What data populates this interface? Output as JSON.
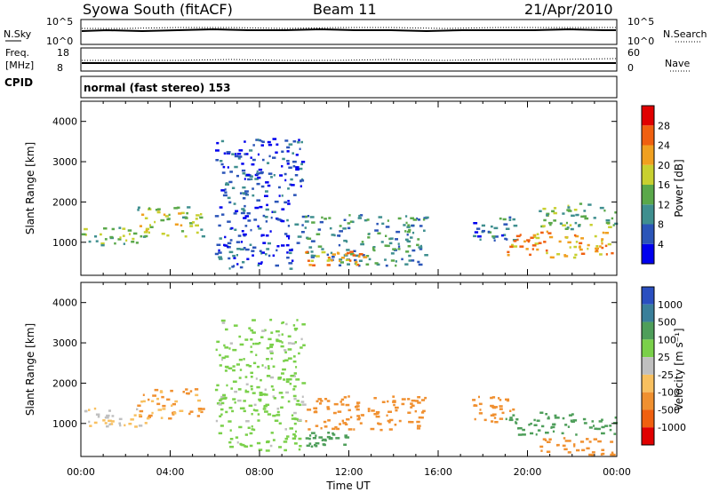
{
  "header": {
    "station": "Syowa South (fitACF)",
    "beam": "Beam 11",
    "date": "21/Apr/2010"
  },
  "top_panels": {
    "noise_label_left": "N.Sky",
    "noise_label_right": "N.Search",
    "noise_ticks": [
      "10^5",
      "10^0"
    ],
    "freq_label_line1": "Freq.",
    "freq_label_line2": "[MHz]",
    "freq_ticks": [
      "18",
      "8"
    ],
    "nave_label": "Nave",
    "nave_ticks": [
      "60",
      "0"
    ],
    "cpid_label": "CPID",
    "cpid_text": "normal (fast stereo) 153"
  },
  "colors": {
    "power_scale": [
      "#0000ee",
      "#2b55b8",
      "#3f8f8f",
      "#5aa84a",
      "#c8d030",
      "#f0a020",
      "#f06010",
      "#e00000"
    ],
    "velocity_scale": [
      "#2a4fc0",
      "#3a7f9a",
      "#4e9e5a",
      "#7ad04a",
      "#c0c0c0",
      "#f8c060",
      "#f09030",
      "#f06010",
      "#e00000"
    ]
  },
  "chart_data": [
    {
      "type": "heatmap",
      "name": "power",
      "ylabel": "Slant Range [km]",
      "ylim": [
        180,
        4500
      ],
      "yticks": [
        "1000",
        "2000",
        "3000",
        "4000"
      ],
      "xlim": [
        "00:00",
        "24:00"
      ],
      "colorbar": {
        "label": "Power [dB]",
        "ticks": [
          "4",
          "8",
          "12",
          "16",
          "20",
          "24",
          "28"
        ],
        "range": [
          0,
          32
        ]
      },
      "regions": [
        {
          "start_hr": 0.0,
          "end_hr": 3.0,
          "range_min": 900,
          "range_max": 1400,
          "value": 14
        },
        {
          "start_hr": 2.5,
          "end_hr": 5.5,
          "range_min": 1100,
          "range_max": 1900,
          "value": 16
        },
        {
          "start_hr": 6.0,
          "end_hr": 10.0,
          "range_min": 300,
          "range_max": 3600,
          "value": 5
        },
        {
          "start_hr": 10.0,
          "end_hr": 15.5,
          "range_min": 400,
          "range_max": 1700,
          "value": 10
        },
        {
          "start_hr": 10.0,
          "end_hr": 13.0,
          "range_min": 400,
          "range_max": 800,
          "value": 22
        },
        {
          "start_hr": 17.5,
          "end_hr": 19.5,
          "range_min": 1000,
          "range_max": 1700,
          "value": 8
        },
        {
          "start_hr": 19.0,
          "end_hr": 24.0,
          "range_min": 600,
          "range_max": 1300,
          "value": 22
        },
        {
          "start_hr": 20.5,
          "end_hr": 24.0,
          "range_min": 1300,
          "range_max": 2000,
          "value": 14
        }
      ]
    },
    {
      "type": "heatmap",
      "name": "velocity",
      "xlabel": "Time UT",
      "ylabel": "Slant Range [km]",
      "ylim": [
        180,
        4500
      ],
      "yticks": [
        "1000",
        "2000",
        "3000",
        "4000"
      ],
      "xticks": [
        "00:00",
        "04:00",
        "08:00",
        "12:00",
        "16:00",
        "20:00",
        "00:00"
      ],
      "colorbar": {
        "label": "Velocity [m s⁻¹]",
        "ticks": [
          "1000",
          "500",
          "100",
          "25",
          "-25",
          "-100",
          "-500",
          "-1000"
        ]
      },
      "regions": [
        {
          "start_hr": 0.0,
          "end_hr": 3.0,
          "range_min": 900,
          "range_max": 1400,
          "value": -25
        },
        {
          "start_hr": 2.5,
          "end_hr": 5.5,
          "range_min": 1100,
          "range_max": 1900,
          "value": -100
        },
        {
          "start_hr": 6.0,
          "end_hr": 10.0,
          "range_min": 300,
          "range_max": 3600,
          "value": 50
        },
        {
          "start_hr": 10.0,
          "end_hr": 15.5,
          "range_min": 800,
          "range_max": 1700,
          "value": -300
        },
        {
          "start_hr": 10.0,
          "end_hr": 12.0,
          "range_min": 400,
          "range_max": 800,
          "value": 200
        },
        {
          "start_hr": 17.5,
          "end_hr": 19.5,
          "range_min": 1000,
          "range_max": 1700,
          "value": -300
        },
        {
          "start_hr": 19.0,
          "end_hr": 24.0,
          "range_min": 700,
          "range_max": 1300,
          "value": 300
        },
        {
          "start_hr": 20.5,
          "end_hr": 24.0,
          "range_min": 200,
          "range_max": 700,
          "value": -200
        }
      ]
    }
  ]
}
